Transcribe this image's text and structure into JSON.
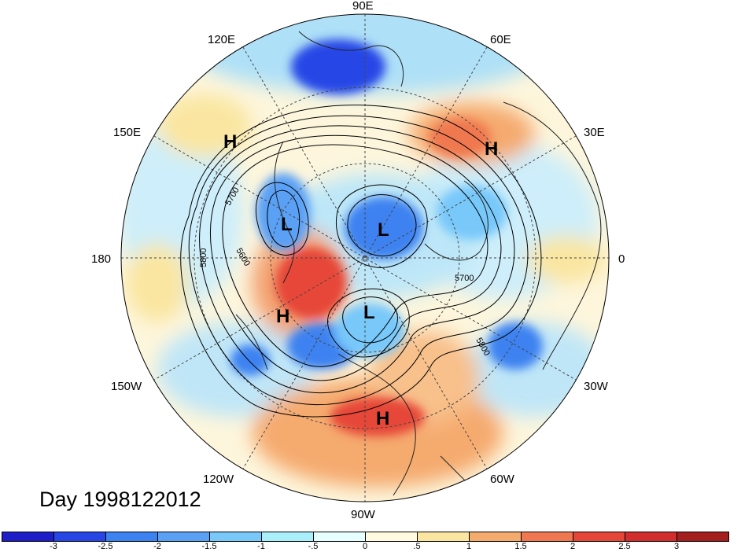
{
  "map": {
    "title": "Day 1998122012",
    "longitude_labels": [
      "90E",
      "60E",
      "30E",
      "0",
      "30W",
      "60W",
      "90W",
      "120W",
      "150W",
      "180",
      "150E",
      "120E"
    ],
    "pressure_centers": [
      {
        "label": "H"
      },
      {
        "label": "H"
      },
      {
        "label": "L"
      },
      {
        "label": "L"
      },
      {
        "label": "H"
      },
      {
        "label": "L"
      },
      {
        "label": "H"
      }
    ],
    "contour_labels": [
      "5700",
      "5800",
      "5600",
      "5700",
      "5800"
    ]
  },
  "colorbar": {
    "ticks": [
      "-3",
      "-2.5",
      "-2",
      "-1.5",
      "-1",
      "-.5",
      "0",
      ".5",
      "1",
      "1.5",
      "2",
      "2.5",
      "3"
    ],
    "colors": [
      "#1e1ec8",
      "#2846e6",
      "#3c82f0",
      "#5aa0f5",
      "#78c8fa",
      "#aaf0fa",
      "#e6ffff",
      "#fffae0",
      "#fae6a0",
      "#f5aa6e",
      "#f07850",
      "#e64637",
      "#d22d2d",
      "#a51e1e"
    ]
  }
}
